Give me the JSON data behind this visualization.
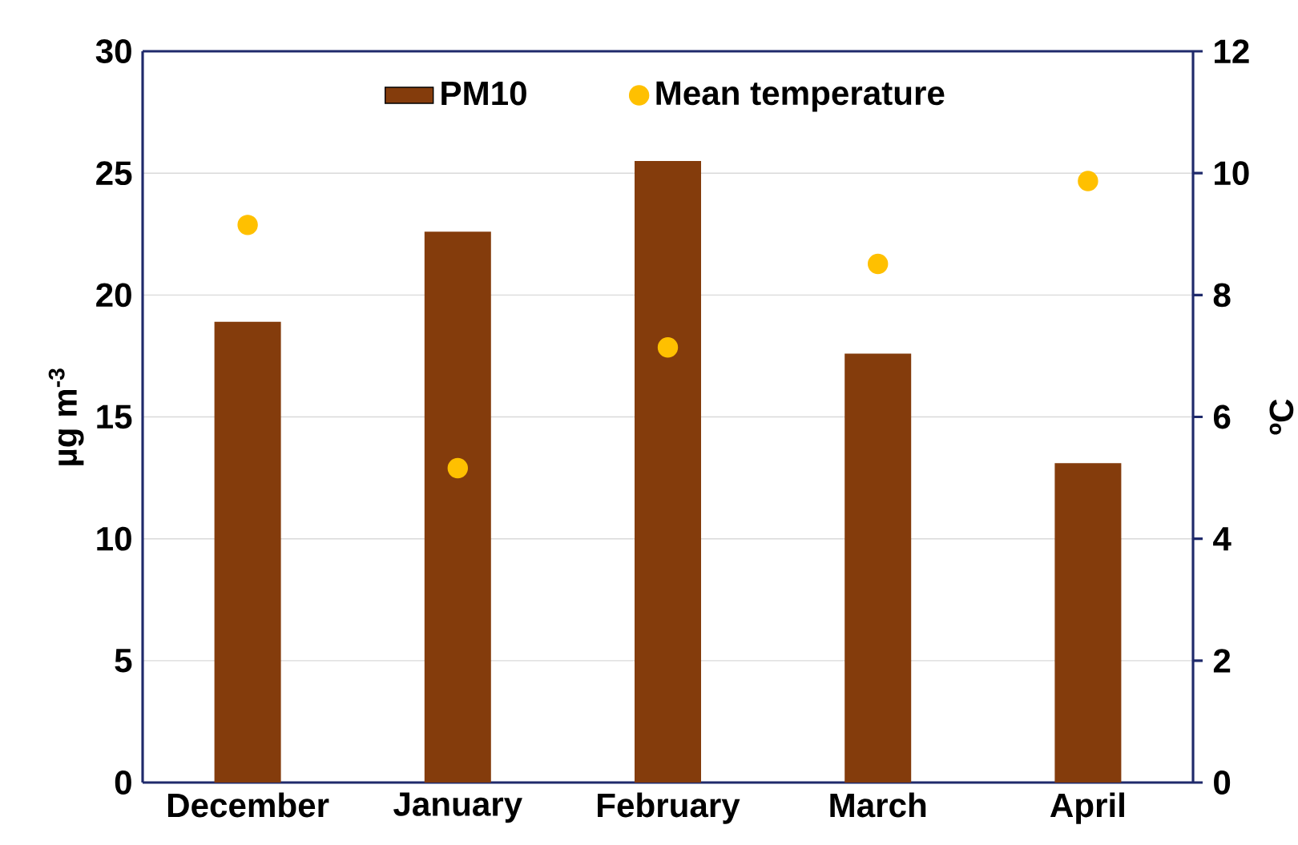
{
  "chart_data": {
    "type": "bar",
    "categories": [
      "December",
      "January",
      "February",
      "March",
      "April"
    ],
    "ylabel": "µg m$^{-3}$",
    "y2label": "ºC",
    "ylim": [
      0,
      30
    ],
    "yticks": [
      0,
      5,
      10,
      15,
      20,
      25,
      30
    ],
    "y2lim": [
      0,
      12
    ],
    "y2ticks": [
      0,
      2,
      4,
      6,
      8,
      10,
      12
    ],
    "grid": "y",
    "legend": "top",
    "series": [
      {
        "name": "PM10",
        "color": "#843C0C",
        "values": [
          18.9,
          22.6,
          25.5,
          17.6,
          13.1
        ]
      },
      {
        "name": "Mean temperature",
        "type": "scatter",
        "axis": "y2",
        "color": "#FFC000",
        "values": [
          9.15,
          5.16,
          7.14,
          8.51,
          9.87
        ]
      }
    ]
  }
}
